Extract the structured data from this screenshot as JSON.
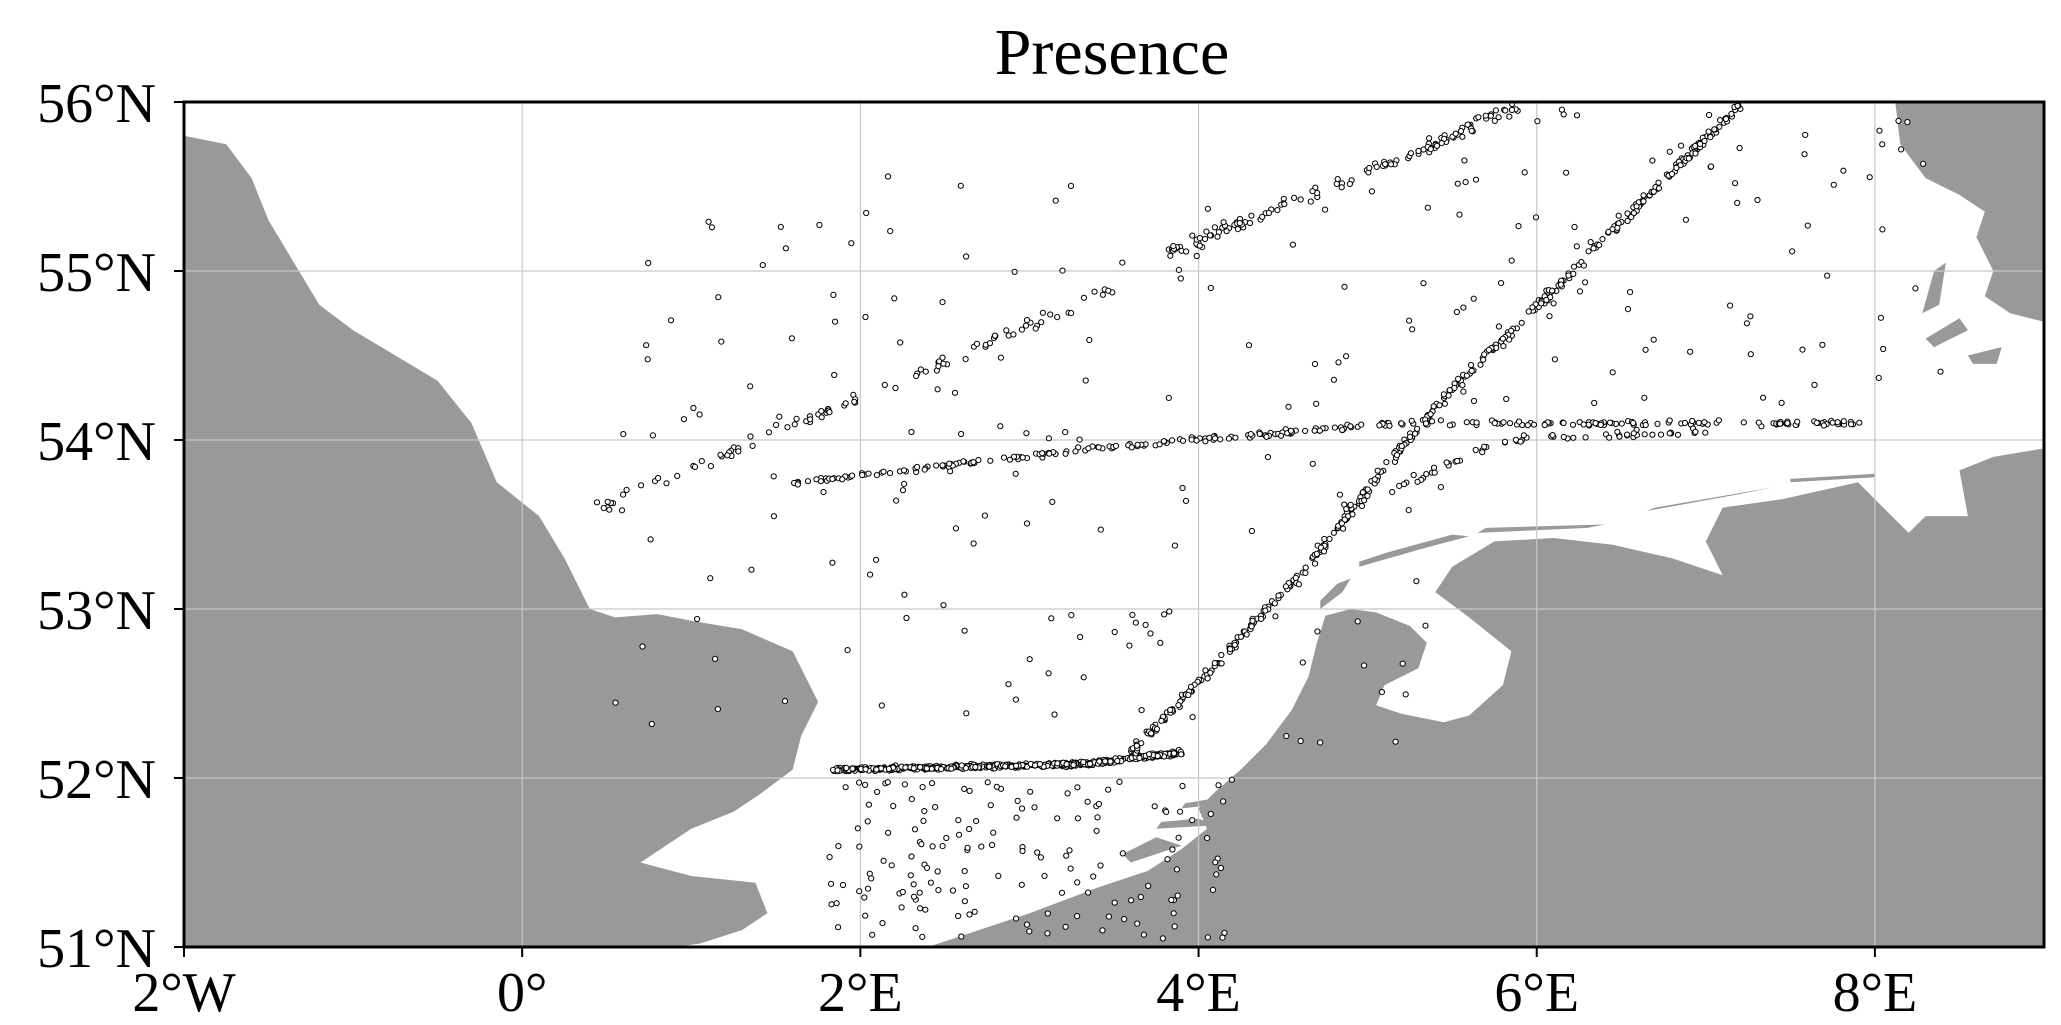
{
  "title": "Presence",
  "colors": {
    "land": "#999999",
    "sea": "#ffffff",
    "grid": "#c8c8c8",
    "frame": "#000000",
    "marker_edge": "#000000"
  },
  "map_extent": {
    "lon_min": -2,
    "lon_max": 9,
    "lat_min": 51,
    "lat_max": 56
  },
  "x_ticks": [
    {
      "lon": -2,
      "label": "2°W"
    },
    {
      "lon": 0,
      "label": "0°"
    },
    {
      "lon": 2,
      "label": "2°E"
    },
    {
      "lon": 4,
      "label": "4°E"
    },
    {
      "lon": 6,
      "label": "6°E"
    },
    {
      "lon": 8,
      "label": "8°E"
    }
  ],
  "y_ticks": [
    {
      "lat": 51,
      "label": "51°N"
    },
    {
      "lat": 52,
      "label": "52°N"
    },
    {
      "lat": 53,
      "label": "53°N"
    },
    {
      "lat": 54,
      "label": "54°N"
    },
    {
      "lat": 55,
      "label": "55°N"
    },
    {
      "lat": 56,
      "label": "56°N"
    }
  ],
  "gridlines": true,
  "landmasses": [
    {
      "name": "Great Britain",
      "coords": [
        [
          -2,
          55.8
        ],
        [
          -1.75,
          55.75
        ],
        [
          -1.6,
          55.55
        ],
        [
          -1.5,
          55.3
        ],
        [
          -1.35,
          55.05
        ],
        [
          -1.2,
          54.8
        ],
        [
          -1.0,
          54.65
        ],
        [
          -0.75,
          54.5
        ],
        [
          -0.5,
          54.35
        ],
        [
          -0.3,
          54.1
        ],
        [
          -0.15,
          53.75
        ],
        [
          0.1,
          53.55
        ],
        [
          0.25,
          53.3
        ],
        [
          0.35,
          53.1
        ],
        [
          0.4,
          53.0
        ],
        [
          0.55,
          52.95
        ],
        [
          0.8,
          52.97
        ],
        [
          1.0,
          52.93
        ],
        [
          1.3,
          52.88
        ],
        [
          1.6,
          52.75
        ],
        [
          1.75,
          52.45
        ],
        [
          1.65,
          52.25
        ],
        [
          1.6,
          52.05
        ],
        [
          1.4,
          51.9
        ],
        [
          1.25,
          51.8
        ],
        [
          1.0,
          51.7
        ],
        [
          0.85,
          51.6
        ],
        [
          0.7,
          51.5
        ],
        [
          1.0,
          51.42
        ],
        [
          1.38,
          51.38
        ],
        [
          1.45,
          51.2
        ],
        [
          1.3,
          51.1
        ],
        [
          1.05,
          51.02
        ],
        [
          0.9,
          51.0
        ],
        [
          -2,
          51.0
        ]
      ]
    },
    {
      "name": "Netherlands-Germany-Belgium",
      "coords": [
        [
          2.4,
          51.0
        ],
        [
          2.7,
          51.1
        ],
        [
          3.0,
          51.2
        ],
        [
          3.4,
          51.35
        ],
        [
          3.7,
          51.45
        ],
        [
          3.9,
          51.58
        ],
        [
          4.05,
          51.7
        ],
        [
          4.0,
          51.82
        ],
        [
          4.1,
          51.92
        ],
        [
          4.25,
          52.05
        ],
        [
          4.4,
          52.2
        ],
        [
          4.55,
          52.4
        ],
        [
          4.65,
          52.6
        ],
        [
          4.7,
          52.8
        ],
        [
          4.75,
          52.96
        ],
        [
          4.9,
          53.0
        ],
        [
          5.05,
          52.98
        ],
        [
          5.25,
          52.9
        ],
        [
          5.35,
          52.8
        ],
        [
          5.3,
          52.65
        ],
        [
          5.1,
          52.55
        ],
        [
          5.05,
          52.43
        ],
        [
          5.2,
          52.38
        ],
        [
          5.45,
          52.33
        ],
        [
          5.6,
          52.37
        ],
        [
          5.8,
          52.55
        ],
        [
          5.85,
          52.75
        ],
        [
          5.6,
          52.95
        ],
        [
          5.4,
          53.1
        ],
        [
          5.5,
          53.25
        ],
        [
          5.75,
          53.4
        ],
        [
          6.1,
          53.42
        ],
        [
          6.45,
          53.38
        ],
        [
          6.8,
          53.3
        ],
        [
          7.1,
          53.2
        ],
        [
          7.0,
          53.4
        ],
        [
          7.1,
          53.6
        ],
        [
          7.45,
          53.65
        ],
        [
          7.9,
          53.75
        ],
        [
          8.1,
          53.55
        ],
        [
          8.2,
          53.45
        ],
        [
          8.3,
          53.55
        ],
        [
          8.55,
          53.55
        ],
        [
          8.5,
          53.82
        ],
        [
          8.7,
          53.9
        ],
        [
          9,
          53.95
        ],
        [
          9,
          51.0
        ]
      ]
    },
    {
      "name": "Denmark",
      "coords": [
        [
          8.12,
          56.0
        ],
        [
          8.15,
          55.75
        ],
        [
          8.3,
          55.55
        ],
        [
          8.5,
          55.45
        ],
        [
          8.65,
          55.35
        ],
        [
          8.6,
          55.2
        ],
        [
          8.7,
          55.0
        ],
        [
          8.65,
          54.85
        ],
        [
          8.8,
          54.75
        ],
        [
          9,
          54.7
        ],
        [
          9,
          56.0
        ]
      ]
    }
  ],
  "islands": [
    {
      "name": "Texel",
      "coords": [
        [
          4.72,
          53.0
        ],
        [
          4.85,
          53.1
        ],
        [
          4.9,
          53.18
        ],
        [
          4.82,
          53.15
        ],
        [
          4.72,
          53.05
        ]
      ]
    },
    {
      "name": "Vlieland-Terschelling",
      "coords": [
        [
          4.95,
          53.25
        ],
        [
          5.3,
          53.35
        ],
        [
          5.6,
          53.43
        ],
        [
          5.5,
          53.44
        ],
        [
          5.1,
          53.33
        ],
        [
          4.95,
          53.28
        ]
      ]
    },
    {
      "name": "Ameland-Schiermonnikoog",
      "coords": [
        [
          5.65,
          53.45
        ],
        [
          6.3,
          53.48
        ],
        [
          6.4,
          53.5
        ],
        [
          5.7,
          53.48
        ]
      ]
    },
    {
      "name": "Borkum-Juist",
      "coords": [
        [
          6.65,
          53.58
        ],
        [
          7.2,
          53.68
        ],
        [
          7.4,
          53.72
        ],
        [
          6.7,
          53.6
        ]
      ]
    },
    {
      "name": "Langeoog-Wangerooge",
      "coords": [
        [
          7.5,
          53.75
        ],
        [
          8.0,
          53.78
        ],
        [
          8.0,
          53.8
        ],
        [
          7.5,
          53.77
        ]
      ]
    },
    {
      "name": "Sylt",
      "coords": [
        [
          8.28,
          54.75
        ],
        [
          8.35,
          55.0
        ],
        [
          8.42,
          55.05
        ],
        [
          8.38,
          54.8
        ]
      ]
    },
    {
      "name": "Foehr-Amrum",
      "coords": [
        [
          8.3,
          54.6
        ],
        [
          8.5,
          54.72
        ],
        [
          8.55,
          54.65
        ],
        [
          8.35,
          54.55
        ]
      ]
    },
    {
      "name": "Pellworm",
      "coords": [
        [
          8.55,
          54.5
        ],
        [
          8.75,
          54.55
        ],
        [
          8.72,
          54.45
        ],
        [
          8.58,
          54.45
        ]
      ]
    },
    {
      "name": "Walcheren",
      "coords": [
        [
          3.6,
          51.5
        ],
        [
          3.9,
          51.6
        ],
        [
          3.75,
          51.65
        ],
        [
          3.55,
          51.55
        ]
      ]
    },
    {
      "name": "Schouwen",
      "coords": [
        [
          3.75,
          51.7
        ],
        [
          4.1,
          51.72
        ],
        [
          4.0,
          51.76
        ],
        [
          3.78,
          51.74
        ]
      ]
    },
    {
      "name": "Goeree",
      "coords": [
        [
          3.9,
          51.82
        ],
        [
          4.2,
          51.85
        ],
        [
          4.1,
          51.88
        ],
        [
          3.92,
          51.85
        ]
      ]
    }
  ],
  "presence_tracks": [
    {
      "name": "ferry-track-52N",
      "count": 520,
      "path": [
        [
          1.85,
          52.05
        ],
        [
          3.3,
          52.08
        ],
        [
          3.9,
          52.15
        ]
      ],
      "spread": 0.03
    },
    {
      "name": "ferry-track-diagonal",
      "count": 420,
      "path": [
        [
          3.6,
          52.15
        ],
        [
          4.6,
          53.2
        ],
        [
          5.4,
          54.2
        ],
        [
          7.2,
          55.98
        ]
      ],
      "spread": 0.04
    },
    {
      "name": "track-54N",
      "count": 280,
      "path": [
        [
          1.6,
          53.75
        ],
        [
          3.4,
          53.95
        ],
        [
          5.2,
          54.1
        ],
        [
          7.9,
          54.1
        ]
      ],
      "spread": 0.04
    },
    {
      "name": "track-upper-diagonal",
      "count": 130,
      "path": [
        [
          3.8,
          55.1
        ],
        [
          5.5,
          55.8
        ],
        [
          5.9,
          55.98
        ]
      ],
      "spread": 0.08
    },
    {
      "name": "track-westward",
      "count": 90,
      "path": [
        [
          0.45,
          53.6
        ],
        [
          2.0,
          54.25
        ],
        [
          3.5,
          54.9
        ]
      ],
      "spread": 0.08
    },
    {
      "name": "track-mid",
      "count": 70,
      "path": [
        [
          4.9,
          53.6
        ],
        [
          5.8,
          54.0
        ],
        [
          7.0,
          54.05
        ]
      ],
      "spread": 0.06
    }
  ],
  "scatter_regions": [
    {
      "name": "southern-bight",
      "count": 160,
      "lon": [
        1.8,
        4.2
      ],
      "lat": [
        51.05,
        52.0
      ]
    },
    {
      "name": "central-north-sea",
      "count": 160,
      "lon": [
        0.5,
        5.5
      ],
      "lat": [
        52.2,
        55.6
      ]
    },
    {
      "name": "german-bight",
      "count": 80,
      "lon": [
        5.5,
        8.4
      ],
      "lat": [
        54.2,
        56.0
      ]
    }
  ]
}
